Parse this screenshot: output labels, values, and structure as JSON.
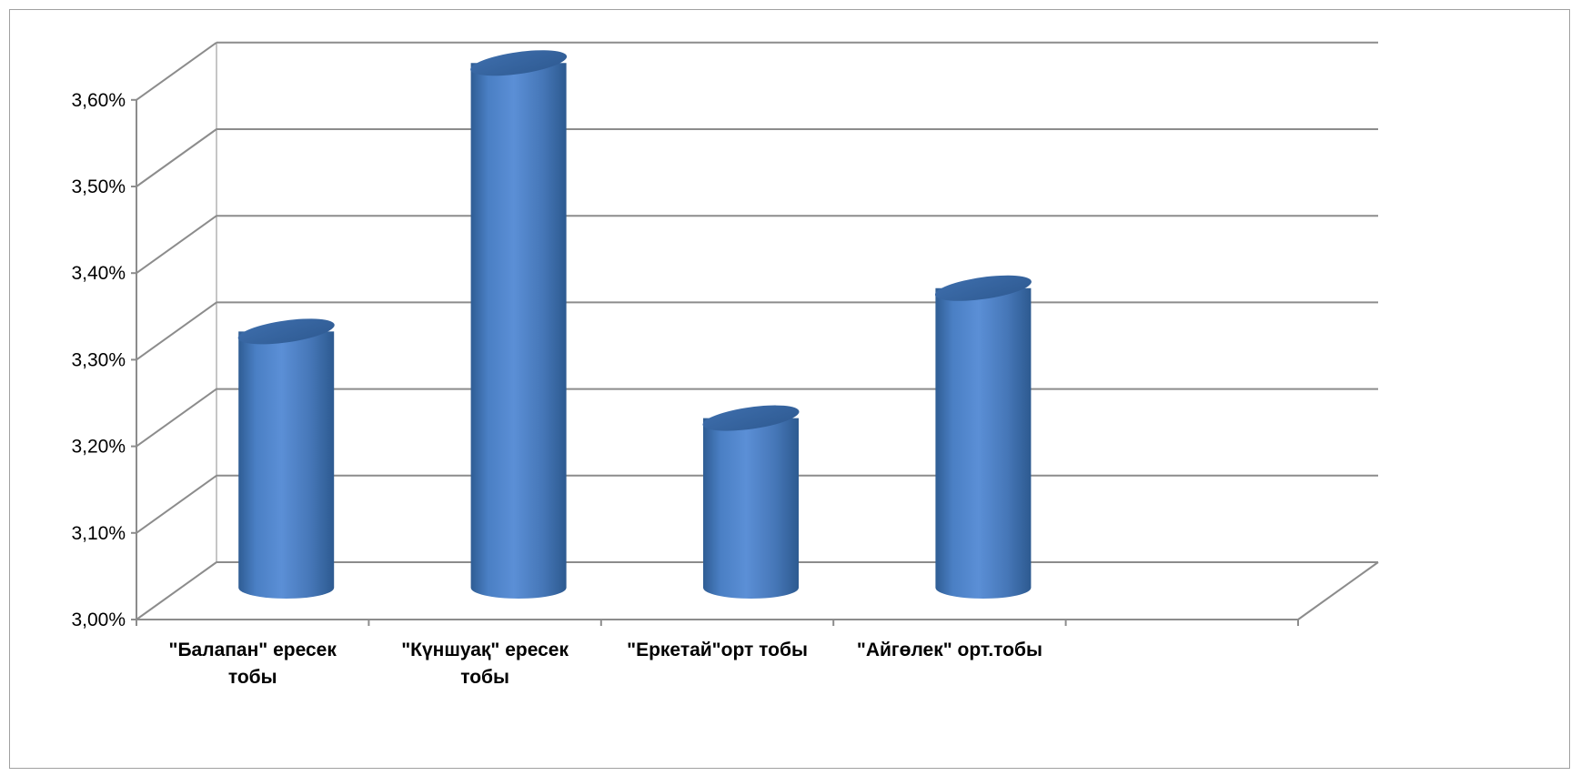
{
  "chart_data": {
    "type": "bar",
    "style": "3d-cylinder",
    "categories": [
      [
        "\"Балапан\" ересек",
        "тобы"
      ],
      [
        "\"Күншуақ\" ересек",
        "тобы"
      ],
      [
        "\"Еркетай\"орт тобы"
      ],
      [
        "\"Айгөлек\" орт.тобы"
      ],
      [
        ""
      ]
    ],
    "values": [
      3.31,
      3.62,
      3.21,
      3.36,
      null
    ],
    "y_ticks": [
      "3,00%",
      "3,10%",
      "3,20%",
      "3,30%",
      "3,40%",
      "3,50%",
      "3,60%"
    ],
    "ylim": [
      3.0,
      3.6
    ],
    "title": "",
    "xlabel": "",
    "ylabel": "",
    "grid": true,
    "legend": "none",
    "colors": {
      "bar_light": "#5b8fd6",
      "bar_mid": "#4a7fc4",
      "bar_dark": "#2f5d94",
      "bar_top": "#3a6aa8",
      "grid": "#8c8c8c",
      "axis": "#8c8c8c"
    }
  }
}
